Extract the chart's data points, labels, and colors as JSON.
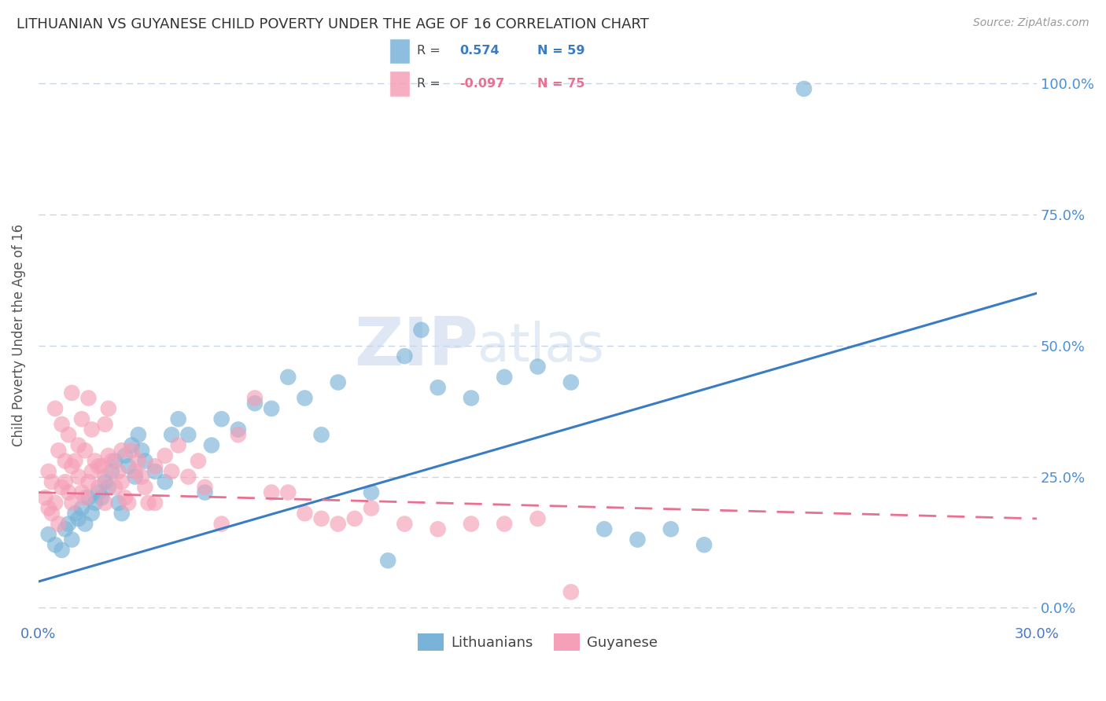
{
  "title": "LITHUANIAN VS GUYANESE CHILD POVERTY UNDER THE AGE OF 16 CORRELATION CHART",
  "source": "Source: ZipAtlas.com",
  "ylabel": "Child Poverty Under the Age of 16",
  "ytick_labels": [
    "0.0%",
    "25.0%",
    "50.0%",
    "75.0%",
    "100.0%"
  ],
  "ytick_values": [
    0,
    25,
    50,
    75,
    100
  ],
  "xlim": [
    0,
    30
  ],
  "ylim": [
    -3,
    107
  ],
  "blue_line": {
    "x0": 0,
    "y0": 5,
    "x1": 30,
    "y1": 60
  },
  "pink_line": {
    "x0": 0,
    "y0": 22,
    "x1": 30,
    "y1": 17
  },
  "watermark_zip": "ZIP",
  "watermark_atlas": "atlas",
  "background_color": "#ffffff",
  "grid_color": "#c8d4e8",
  "blue_color": "#7ab3d8",
  "pink_color": "#f5a0b8",
  "blue_line_color": "#3a7cc4",
  "pink_line_color": "#e87090",
  "right_tick_color": "#4a90d9",
  "legend_R_color": "#3a7cc4",
  "legend_Rn_color": "#e87090",
  "blue_scatter": [
    [
      0.3,
      14
    ],
    [
      0.5,
      12
    ],
    [
      0.7,
      11
    ],
    [
      0.8,
      15
    ],
    [
      0.9,
      16
    ],
    [
      1.0,
      13
    ],
    [
      1.1,
      18
    ],
    [
      1.2,
      17
    ],
    [
      1.3,
      19
    ],
    [
      1.4,
      16
    ],
    [
      1.5,
      21
    ],
    [
      1.6,
      18
    ],
    [
      1.7,
      20
    ],
    [
      1.8,
      22
    ],
    [
      1.9,
      21
    ],
    [
      2.0,
      24
    ],
    [
      2.1,
      23
    ],
    [
      2.2,
      26
    ],
    [
      2.3,
      28
    ],
    [
      2.4,
      20
    ],
    [
      2.5,
      18
    ],
    [
      2.6,
      29
    ],
    [
      2.7,
      27
    ],
    [
      2.8,
      31
    ],
    [
      2.9,
      25
    ],
    [
      3.0,
      33
    ],
    [
      3.1,
      30
    ],
    [
      3.2,
      28
    ],
    [
      3.5,
      26
    ],
    [
      3.8,
      24
    ],
    [
      4.0,
      33
    ],
    [
      4.2,
      36
    ],
    [
      4.5,
      33
    ],
    [
      5.0,
      22
    ],
    [
      5.2,
      31
    ],
    [
      5.5,
      36
    ],
    [
      6.0,
      34
    ],
    [
      6.5,
      39
    ],
    [
      7.0,
      38
    ],
    [
      7.5,
      44
    ],
    [
      8.0,
      40
    ],
    [
      8.5,
      33
    ],
    [
      9.0,
      43
    ],
    [
      10.0,
      22
    ],
    [
      10.5,
      9
    ],
    [
      11.0,
      48
    ],
    [
      11.5,
      53
    ],
    [
      12.0,
      42
    ],
    [
      13.0,
      40
    ],
    [
      14.0,
      44
    ],
    [
      15.0,
      46
    ],
    [
      16.0,
      43
    ],
    [
      17.0,
      15
    ],
    [
      18.0,
      13
    ],
    [
      19.0,
      15
    ],
    [
      20.0,
      12
    ],
    [
      23.0,
      99
    ]
  ],
  "pink_scatter": [
    [
      0.2,
      21
    ],
    [
      0.3,
      19
    ],
    [
      0.4,
      18
    ],
    [
      0.5,
      20
    ],
    [
      0.6,
      16
    ],
    [
      0.7,
      23
    ],
    [
      0.8,
      24
    ],
    [
      0.9,
      22
    ],
    [
      1.0,
      20
    ],
    [
      1.1,
      28
    ],
    [
      1.2,
      25
    ],
    [
      1.3,
      22
    ],
    [
      1.4,
      21
    ],
    [
      1.5,
      24
    ],
    [
      1.6,
      26
    ],
    [
      1.7,
      28
    ],
    [
      1.8,
      23
    ],
    [
      1.9,
      27
    ],
    [
      2.0,
      25
    ],
    [
      2.1,
      29
    ],
    [
      2.2,
      28
    ],
    [
      2.3,
      23
    ],
    [
      2.4,
      26
    ],
    [
      2.5,
      24
    ],
    [
      2.6,
      21
    ],
    [
      2.7,
      20
    ],
    [
      2.8,
      30
    ],
    [
      2.9,
      26
    ],
    [
      3.0,
      28
    ],
    [
      3.1,
      25
    ],
    [
      3.2,
      23
    ],
    [
      3.3,
      20
    ],
    [
      3.5,
      27
    ],
    [
      3.8,
      29
    ],
    [
      4.0,
      26
    ],
    [
      4.2,
      31
    ],
    [
      4.5,
      25
    ],
    [
      4.8,
      28
    ],
    [
      5.0,
      23
    ],
    [
      5.5,
      16
    ],
    [
      6.0,
      33
    ],
    [
      6.5,
      40
    ],
    [
      7.0,
      22
    ],
    [
      7.5,
      22
    ],
    [
      8.0,
      18
    ],
    [
      8.5,
      17
    ],
    [
      9.0,
      16
    ],
    [
      9.5,
      17
    ],
    [
      10.0,
      19
    ],
    [
      11.0,
      16
    ],
    [
      12.0,
      15
    ],
    [
      13.0,
      16
    ],
    [
      14.0,
      16
    ],
    [
      15.0,
      17
    ],
    [
      16.0,
      3
    ],
    [
      0.5,
      38
    ],
    [
      0.7,
      35
    ],
    [
      0.9,
      33
    ],
    [
      1.0,
      41
    ],
    [
      1.3,
      36
    ],
    [
      1.5,
      40
    ],
    [
      1.6,
      34
    ],
    [
      2.0,
      35
    ],
    [
      2.1,
      38
    ],
    [
      0.3,
      26
    ],
    [
      0.4,
      24
    ],
    [
      0.6,
      30
    ],
    [
      0.8,
      28
    ],
    [
      1.0,
      27
    ],
    [
      1.2,
      31
    ],
    [
      1.4,
      30
    ],
    [
      1.8,
      27
    ],
    [
      2.0,
      20
    ],
    [
      2.5,
      30
    ],
    [
      3.5,
      20
    ]
  ]
}
